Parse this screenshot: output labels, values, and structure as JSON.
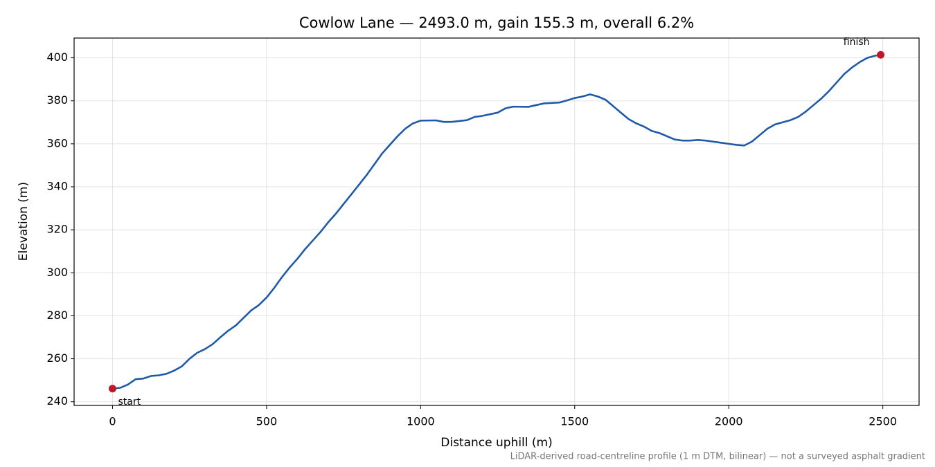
{
  "chart_data": {
    "type": "line",
    "title": "Cowlow Lane — 2493.0 m, gain 155.3 m, overall 6.2%",
    "xlabel": "Distance uphill (m)",
    "ylabel": "Elevation (m)",
    "note": "LiDAR-derived road-centreline profile (1 m DTM, bilinear) — not a surveyed asphalt gradient",
    "color": "#1f5aa8",
    "marker_color": "#c0182a",
    "grid": true,
    "x": [
      0,
      25,
      50,
      75,
      100,
      125,
      150,
      175,
      200,
      225,
      250,
      275,
      300,
      325,
      350,
      375,
      400,
      425,
      450,
      475,
      500,
      525,
      550,
      575,
      600,
      625,
      650,
      675,
      700,
      725,
      750,
      775,
      800,
      825,
      850,
      875,
      900,
      925,
      950,
      975,
      1000,
      1050,
      1075,
      1100,
      1150,
      1175,
      1200,
      1250,
      1275,
      1300,
      1350,
      1375,
      1400,
      1450,
      1475,
      1500,
      1525,
      1550,
      1575,
      1600,
      1625,
      1650,
      1675,
      1700,
      1725,
      1750,
      1775,
      1800,
      1825,
      1850,
      1875,
      1900,
      1925,
      1950,
      1975,
      2000,
      2025,
      2050,
      2075,
      2100,
      2125,
      2150,
      2175,
      2200,
      2225,
      2250,
      2275,
      2300,
      2325,
      2350,
      2375,
      2400,
      2425,
      2450,
      2475,
      2493
    ],
    "values": [
      246.1,
      246.5,
      248,
      250.5,
      250.8,
      252,
      252.3,
      253,
      254.5,
      256.5,
      260,
      262.8,
      264.5,
      266.8,
      270,
      273,
      275.5,
      279,
      282.5,
      285,
      288.5,
      293,
      298,
      302.5,
      306.5,
      311,
      315,
      319,
      323.5,
      327.5,
      332,
      336.5,
      341,
      345.5,
      350.5,
      355.5,
      359.5,
      363.5,
      367,
      369.5,
      370.8,
      370.9,
      370.2,
      370.2,
      371,
      372.5,
      373,
      374.5,
      376.5,
      377.3,
      377.2,
      378,
      378.8,
      379.2,
      380.2,
      381.3,
      382,
      383,
      382,
      380.5,
      377.5,
      374.5,
      371.5,
      369.5,
      368,
      366,
      365,
      363.5,
      362,
      361.5,
      361.5,
      361.8,
      361.5,
      361,
      360.5,
      360,
      359.5,
      359.2,
      361,
      364,
      367,
      369,
      370,
      371,
      372.5,
      375,
      378,
      381,
      384.5,
      388.5,
      392.5,
      395.5,
      398,
      400,
      401,
      401.4
    ],
    "annotations": [
      {
        "text": "start",
        "x": 0,
        "y": 246.1
      },
      {
        "text": "finish",
        "x": 2493,
        "y": 401.4
      }
    ],
    "xlim": [
      -124.65,
      2617.65
    ],
    "ylim": [
      238.3,
      409.2
    ],
    "xticks": [
      0,
      500,
      1000,
      1500,
      2000,
      2500
    ],
    "yticks": [
      240,
      260,
      280,
      300,
      320,
      340,
      360,
      380,
      400
    ]
  }
}
